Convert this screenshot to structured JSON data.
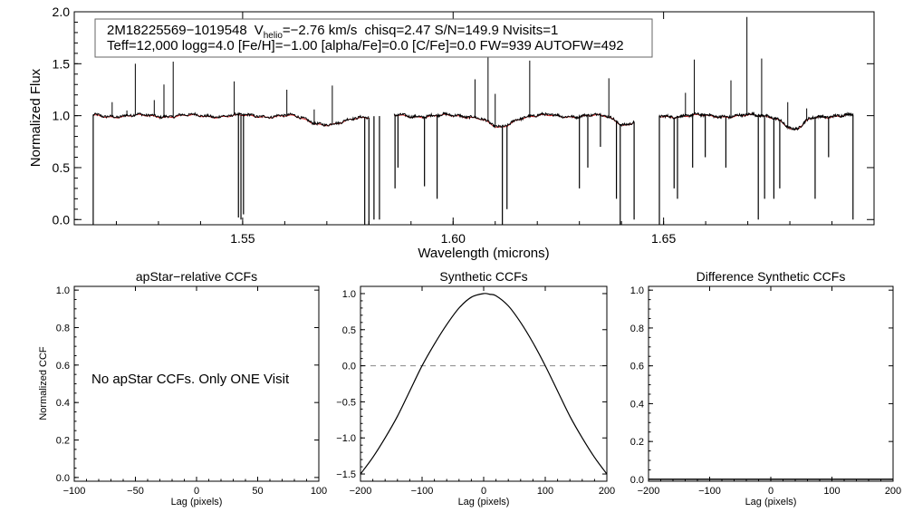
{
  "chart_data": [
    {
      "id": "spectrum",
      "type": "line",
      "xlabel": "Wavelength (microns)",
      "ylabel": "Normalized Flux",
      "xlim": [
        1.51,
        1.7
      ],
      "ylim": [
        -0.05,
        2.0
      ],
      "xticks": [
        {
          "v": 1.55,
          "label": "1.55"
        },
        {
          "v": 1.6,
          "label": "1.60"
        },
        {
          "v": 1.65,
          "label": "1.65"
        }
      ],
      "yticks": [
        {
          "v": 0.0,
          "label": "0.0"
        },
        {
          "v": 0.5,
          "label": "0.5"
        },
        {
          "v": 1.0,
          "label": "1.0"
        },
        {
          "v": 1.5,
          "label": "1.5"
        },
        {
          "v": 2.0,
          "label": "2.0"
        }
      ],
      "header": {
        "star_id": "2M18225569−1019548",
        "v_sym": "V",
        "v_sub": "helio",
        "v_value": "=−2.76 km/s",
        "stats": "chisq=2.47  S/N=149.9  Nvisits=1",
        "line2": "Teff=12,000 logg=4.0 [Fe/H]=−1.00 [alpha/Fe]=0.0 [C/Fe]=0.0 FW=939 AUTOFW=492"
      },
      "chips": [
        [
          1.5145,
          1.58
        ],
        [
          1.586,
          1.643
        ],
        [
          1.649,
          1.695
        ]
      ],
      "observed_color": "#000000",
      "model_color": "#d62728",
      "absorption_dips": [
        {
          "x": 1.5675,
          "depth": 0.05,
          "width": 0.004
        },
        {
          "x": 1.5725,
          "depth": 0.07,
          "width": 0.004
        },
        {
          "x": 1.611,
          "depth": 0.12,
          "width": 0.0035
        },
        {
          "x": 1.641,
          "depth": 0.08,
          "width": 0.003
        },
        {
          "x": 1.6811,
          "depth": 0.14,
          "width": 0.003
        }
      ],
      "emission_spikes": [
        {
          "x": 1.519,
          "y": 1.13
        },
        {
          "x": 1.5225,
          "y": 1.05
        },
        {
          "x": 1.5245,
          "y": 1.5
        },
        {
          "x": 1.529,
          "y": 1.15
        },
        {
          "x": 1.5313,
          "y": 1.3
        },
        {
          "x": 1.5335,
          "y": 1.52
        },
        {
          "x": 1.548,
          "y": 1.33
        },
        {
          "x": 1.5605,
          "y": 1.25
        },
        {
          "x": 1.567,
          "y": 1.06
        },
        {
          "x": 1.5713,
          "y": 1.29
        },
        {
          "x": 1.6052,
          "y": 1.35
        },
        {
          "x": 1.6083,
          "y": 1.67
        },
        {
          "x": 1.61,
          "y": 1.21
        },
        {
          "x": 1.6182,
          "y": 1.53
        },
        {
          "x": 1.637,
          "y": 1.36
        },
        {
          "x": 1.6552,
          "y": 1.22
        },
        {
          "x": 1.6573,
          "y": 1.54
        },
        {
          "x": 1.666,
          "y": 1.34
        },
        {
          "x": 1.6698,
          "y": 1.95
        },
        {
          "x": 1.6733,
          "y": 1.55
        },
        {
          "x": 1.6795,
          "y": 1.13
        },
        {
          "x": 1.684,
          "y": 1.07
        }
      ],
      "sky_gaps": [
        {
          "x": 1.5145,
          "y": -0.05
        },
        {
          "x": 1.549,
          "y": 0.02
        },
        {
          "x": 1.5496,
          "y": 0.0
        },
        {
          "x": 1.5502,
          "y": 0.05
        },
        {
          "x": 1.579,
          "y": -0.05
        },
        {
          "x": 1.58,
          "y": -0.05
        },
        {
          "x": 1.5812,
          "y": 0.0
        },
        {
          "x": 1.5825,
          "y": 0.0
        },
        {
          "x": 1.5862,
          "y": 0.3
        },
        {
          "x": 1.5869,
          "y": 0.5
        },
        {
          "x": 1.5932,
          "y": 0.32
        },
        {
          "x": 1.5962,
          "y": 0.2
        },
        {
          "x": 1.6117,
          "y": -0.05
        },
        {
          "x": 1.6128,
          "y": 0.1
        },
        {
          "x": 1.63,
          "y": 0.3
        },
        {
          "x": 1.632,
          "y": 0.5
        },
        {
          "x": 1.635,
          "y": 0.7
        },
        {
          "x": 1.6388,
          "y": 0.2
        },
        {
          "x": 1.6397,
          "y": -0.05
        },
        {
          "x": 1.643,
          "y": 0.0
        },
        {
          "x": 1.649,
          "y": -0.05
        },
        {
          "x": 1.6525,
          "y": 0.3
        },
        {
          "x": 1.6533,
          "y": 0.2
        },
        {
          "x": 1.6569,
          "y": 0.5
        },
        {
          "x": 1.6599,
          "y": 0.6
        },
        {
          "x": 1.6648,
          "y": 0.5
        },
        {
          "x": 1.6725,
          "y": 0.0
        },
        {
          "x": 1.674,
          "y": 0.2
        },
        {
          "x": 1.6762,
          "y": 0.2
        },
        {
          "x": 1.6776,
          "y": 0.3
        },
        {
          "x": 1.686,
          "y": 0.2
        },
        {
          "x": 1.6892,
          "y": 0.6
        },
        {
          "x": 1.695,
          "y": 0.0
        }
      ]
    },
    {
      "id": "apstar-ccf",
      "type": "line",
      "title": "apStar−relative CCFs",
      "xlabel": "Lag (pixels)",
      "ylabel": "Normalized CCF",
      "xlim": [
        -100,
        100
      ],
      "ylim": [
        -0.02,
        1.02
      ],
      "xticks": [
        {
          "v": -100,
          "label": "−100"
        },
        {
          "v": -50,
          "label": "−50"
        },
        {
          "v": 0,
          "label": "0"
        },
        {
          "v": 50,
          "label": "50"
        },
        {
          "v": 100,
          "label": "100"
        }
      ],
      "yticks": [
        {
          "v": 0.0,
          "label": "0.0"
        },
        {
          "v": 0.2,
          "label": "0.2"
        },
        {
          "v": 0.4,
          "label": "0.4"
        },
        {
          "v": 0.6,
          "label": "0.6"
        },
        {
          "v": 0.8,
          "label": "0.8"
        },
        {
          "v": 1.0,
          "label": "1.0"
        }
      ],
      "annotation": "No apStar CCFs.  Only ONE Visit",
      "series": []
    },
    {
      "id": "synthetic-ccf",
      "type": "line",
      "title": "Synthetic CCFs",
      "xlabel": "Lag (pixels)",
      "xlim": [
        -200,
        200
      ],
      "ylim": [
        -1.6,
        1.1
      ],
      "xticks": [
        {
          "v": -200,
          "label": "−200"
        },
        {
          "v": -100,
          "label": "−100"
        },
        {
          "v": 0,
          "label": "0"
        },
        {
          "v": 100,
          "label": "100"
        },
        {
          "v": 200,
          "label": "200"
        }
      ],
      "yticks": [
        {
          "v": -1.5,
          "label": "−1.5"
        },
        {
          "v": -1.0,
          "label": "−1.0"
        },
        {
          "v": -0.5,
          "label": "−0.5"
        },
        {
          "v": 0.0,
          "label": "0.0"
        },
        {
          "v": 0.5,
          "label": "0.5"
        },
        {
          "v": 1.0,
          "label": "1.0"
        }
      ],
      "zero_line": 0.0,
      "series": [
        {
          "name": "ccf",
          "x": [
            -200,
            -180,
            -160,
            -140,
            -120,
            -100,
            -80,
            -60,
            -40,
            -20,
            0,
            10,
            20,
            40,
            60,
            80,
            100,
            120,
            140,
            160,
            180,
            200
          ],
          "y": [
            -1.5,
            -1.27,
            -1.0,
            -0.7,
            -0.35,
            0.0,
            0.3,
            0.57,
            0.8,
            0.95,
            1.0,
            0.99,
            0.97,
            0.83,
            0.6,
            0.32,
            0.0,
            -0.35,
            -0.7,
            -1.0,
            -1.27,
            -1.5
          ]
        }
      ]
    },
    {
      "id": "difference-ccf",
      "type": "line",
      "title": "Difference Synthetic CCFs",
      "xlabel": "Lag (pixels)",
      "xlim": [
        -200,
        200
      ],
      "ylim": [
        -0.01,
        1.02
      ],
      "xticks": [
        {
          "v": -200,
          "label": "−200"
        },
        {
          "v": -100,
          "label": "−100"
        },
        {
          "v": 0,
          "label": "0"
        },
        {
          "v": 100,
          "label": "100"
        },
        {
          "v": 200,
          "label": "200"
        }
      ],
      "yticks": [
        {
          "v": 0.0,
          "label": "0.0"
        },
        {
          "v": 0.2,
          "label": "0.2"
        },
        {
          "v": 0.4,
          "label": "0.4"
        },
        {
          "v": 0.6,
          "label": "0.6"
        },
        {
          "v": 0.8,
          "label": "0.8"
        },
        {
          "v": 1.0,
          "label": "1.0"
        }
      ],
      "series": [
        {
          "name": "difference",
          "x": [
            -200,
            200
          ],
          "y": [
            0.0,
            0.0
          ]
        }
      ]
    }
  ]
}
